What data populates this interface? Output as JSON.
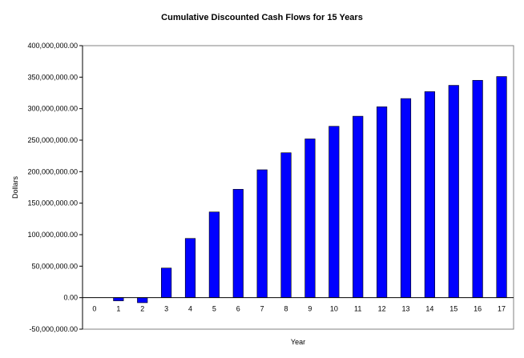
{
  "chart_data": {
    "type": "bar",
    "title": "Cumulative Discounted Cash Flows for 15 Years",
    "xlabel": "Year",
    "ylabel": "Dollars",
    "categories": [
      "0",
      "1",
      "2",
      "3",
      "4",
      "5",
      "6",
      "7",
      "8",
      "9",
      "10",
      "11",
      "12",
      "13",
      "14",
      "15",
      "16",
      "17"
    ],
    "series": [
      {
        "values": [
          0,
          -5000000,
          -8000000,
          47000000,
          94000000,
          136000000,
          172000000,
          203000000,
          230000000,
          252000000,
          272000000,
          288000000,
          303000000,
          316000000,
          327000000,
          337000000,
          345000000,
          351000000
        ]
      }
    ],
    "ylim": [
      -50000000,
      400000000
    ],
    "y_ticks": [
      -50000000,
      0,
      50000000,
      100000000,
      150000000,
      200000000,
      250000000,
      300000000,
      350000000,
      400000000
    ],
    "y_tick_labels": [
      "-50,000,000.00",
      "0.00",
      "50,000,000.00",
      "100,000,000.00",
      "150,000,000.00",
      "200,000,000.00",
      "250,000,000.00",
      "300,000,000.00",
      "350,000,000.00",
      "400,000,000.00"
    ],
    "grid": false,
    "legend": "none",
    "colors": {
      "bar": "#0000ff",
      "bar_outline": "#000000",
      "axis": "#000000",
      "plot_border": "#808080",
      "background": "#ffffff"
    }
  }
}
